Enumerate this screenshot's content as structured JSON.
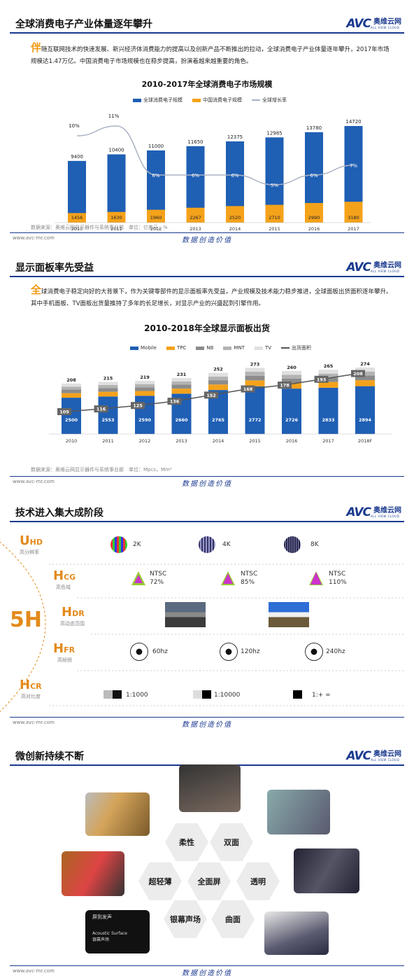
{
  "logo": {
    "mark": "AVC",
    "cn": "奥维云网",
    "en": "ALL VIEW CLOUD"
  },
  "footer": {
    "url": "www.avc-mr.com",
    "slogan": "数据创造价值"
  },
  "section1": {
    "title": "全球消费电子产业体量逐年攀升",
    "para_cap": "伴",
    "para": "随互联网技术的快速发展、新兴经济体消费能力的提高以及创新产品不断推出的拉动，全球消费电子产业体量逐年攀升，2017年市场规模达1.47万亿。中国消费电子市场规模也在稳步提高，扮演着越来越重要的角色。",
    "source": "数据来源：奥维云网显示器件与系统事业部　单位：亿美元，%"
  },
  "section2": {
    "title": "显示面板率先受益",
    "para_cap": "全",
    "para": "球消费电子稳定向好的大背景下，作为关键零部件的显示面板率先受益，产业规模及技术能力稳步推进，全球面板出货面积逐年攀升。其中手机面板、TV面板出货量推持了多年的长足增长，对显示产业的兴盛起到引擎作用。",
    "source": "数据来源：奥维云网显示器件与系统事业部　单位：Mpcs，Mm²"
  },
  "section3": {
    "title": "技术进入集大成阶段",
    "big": "5H",
    "rows": [
      {
        "b": "U",
        "s": "HD",
        "sub": "高分辨率",
        "items": [
          "2K",
          "4K",
          "8K"
        ]
      },
      {
        "b": "H",
        "s": "CG",
        "sub": "高色域",
        "items": [
          "NTSC\n72%",
          "NTSC\n85%",
          "NTSC\n110%"
        ]
      },
      {
        "b": "H",
        "s": "DR",
        "sub": "高动态范围",
        "items": [
          "",
          "",
          ""
        ]
      },
      {
        "b": "H",
        "s": "FR",
        "sub": "高帧频",
        "items": [
          "60hz",
          "120hz",
          "240hz"
        ]
      },
      {
        "b": "H",
        "s": "CR",
        "sub": "高对比度",
        "items": [
          "1:1000",
          "1:10000",
          "1:+ ∞"
        ]
      }
    ]
  },
  "section4": {
    "title": "微创新持续不断",
    "hexes": [
      "柔性",
      "双面",
      "超轻薄",
      "全面屏",
      "透明",
      "银幕声场",
      "曲面"
    ],
    "photo_text": [
      "屏到发声",
      "Acoustic Surface",
      "银幕声场"
    ]
  },
  "chart_data": [
    {
      "type": "bar",
      "title": "2010-2017年全球消费电子市场规模",
      "categories": [
        "2010",
        "2011",
        "2012",
        "2013",
        "2014",
        "2015",
        "2016",
        "2017"
      ],
      "series": [
        {
          "name": "全球消费电子规模",
          "values": [
            9400,
            10400,
            11000,
            11650,
            12375,
            12985,
            13780,
            14720
          ],
          "color": "#1f5fb4"
        },
        {
          "name": "中国消费电子规模",
          "values": [
            1456,
            1630,
            1960,
            2267,
            2520,
            2710,
            2990,
            3180
          ],
          "color": "#f5a21b"
        },
        {
          "name": "全球增长率",
          "values": [
            10,
            11,
            6,
            6,
            6,
            5,
            6,
            7
          ],
          "unit": "%",
          "color": "#aab2c4"
        }
      ]
    },
    {
      "type": "bar",
      "title": "2010-2018年全球显示面板出货",
      "categories": [
        "2010",
        "2011",
        "2012",
        "2013",
        "2014",
        "2015",
        "2016",
        "2017",
        "2018F"
      ],
      "series": [
        {
          "name": "Mobile",
          "values": [
            2500,
            2553,
            2590,
            2660,
            2765,
            2772,
            2726,
            2833,
            2894
          ],
          "color": "#1f5fb4"
        },
        {
          "name": "TPC",
          "color": "#f5a21b"
        },
        {
          "name": "NB",
          "color": "#8c8c8c"
        },
        {
          "name": "MNT",
          "color": "#b3b3b3"
        },
        {
          "name": "TV",
          "color": "#e0e0e0"
        },
        {
          "name": "出货面积",
          "values": [
            109,
            116,
            125,
            136,
            152,
            168,
            178,
            193,
            208
          ],
          "color": "#555555"
        }
      ],
      "totals": [
        208,
        215,
        219,
        231,
        252,
        273,
        260,
        265,
        274
      ]
    }
  ]
}
